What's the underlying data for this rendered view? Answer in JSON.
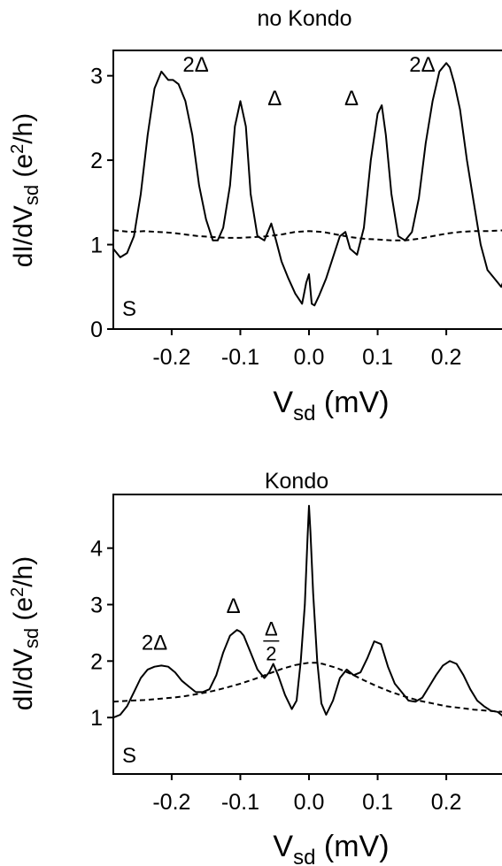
{
  "chart_data": [
    {
      "type": "line",
      "title": "no Kondo",
      "xlabel": {
        "main": "V",
        "sub": "sd",
        "unit": " (mV)"
      },
      "ylabel": {
        "main": "dI/dV",
        "sub": "sd",
        "unit_pre": " (e",
        "sup": "2",
        "unit_post": "/h)"
      },
      "xlim": [
        -0.285,
        0.285
      ],
      "ylim": [
        0,
        3.3
      ],
      "xticks": [
        -0.2,
        -0.1,
        0.0,
        0.1,
        0.2
      ],
      "xtick_labels": [
        "-0.2",
        "-0.1",
        "0.0",
        "0.1",
        "0.2"
      ],
      "yticks": [
        0,
        1,
        2,
        3
      ],
      "ytick_labels": [
        "0",
        "1",
        "2",
        "3"
      ],
      "corner_label": "S",
      "annotations": [
        {
          "text": "2Δ",
          "x": -0.165,
          "y": 3.05
        },
        {
          "text": "Δ",
          "x": -0.05,
          "y": 2.65
        },
        {
          "text": "Δ",
          "x": 0.062,
          "y": 2.65
        },
        {
          "text": "2Δ",
          "x": 0.165,
          "y": 3.05
        }
      ],
      "series": [
        {
          "style": "solid",
          "x": [
            -0.285,
            -0.275,
            -0.265,
            -0.255,
            -0.245,
            -0.235,
            -0.225,
            -0.215,
            -0.205,
            -0.198,
            -0.19,
            -0.18,
            -0.17,
            -0.16,
            -0.15,
            -0.14,
            -0.133,
            -0.125,
            -0.115,
            -0.108,
            -0.1,
            -0.092,
            -0.085,
            -0.075,
            -0.065,
            -0.055,
            -0.048,
            -0.04,
            -0.03,
            -0.02,
            -0.01,
            -0.004,
            0.0,
            0.004,
            0.008,
            0.015,
            0.025,
            0.035,
            0.045,
            0.053,
            0.06,
            0.07,
            0.08,
            0.09,
            0.1,
            0.106,
            0.112,
            0.12,
            0.13,
            0.14,
            0.15,
            0.16,
            0.17,
            0.18,
            0.19,
            0.2,
            0.205,
            0.212,
            0.22,
            0.23,
            0.24,
            0.25,
            0.26,
            0.27,
            0.28,
            0.285
          ],
          "y": [
            0.95,
            0.85,
            0.9,
            1.1,
            1.6,
            2.3,
            2.85,
            3.05,
            2.95,
            2.95,
            2.9,
            2.7,
            2.3,
            1.7,
            1.3,
            1.05,
            1.05,
            1.2,
            1.7,
            2.4,
            2.7,
            2.4,
            1.6,
            1.1,
            1.05,
            1.25,
            1.05,
            0.8,
            0.6,
            0.42,
            0.3,
            0.55,
            0.65,
            0.3,
            0.28,
            0.4,
            0.6,
            0.85,
            1.1,
            1.15,
            0.95,
            0.88,
            1.2,
            2.0,
            2.55,
            2.65,
            2.3,
            1.6,
            1.1,
            1.05,
            1.15,
            1.55,
            2.2,
            2.7,
            3.05,
            3.15,
            3.1,
            2.9,
            2.6,
            2.0,
            1.5,
            1.0,
            0.7,
            0.6,
            0.5,
            0.6
          ]
        },
        {
          "style": "dashed",
          "x": [
            -0.285,
            -0.26,
            -0.24,
            -0.22,
            -0.2,
            -0.18,
            -0.16,
            -0.14,
            -0.12,
            -0.1,
            -0.08,
            -0.06,
            -0.04,
            -0.02,
            0.0,
            0.02,
            0.04,
            0.06,
            0.08,
            0.1,
            0.12,
            0.14,
            0.16,
            0.18,
            0.2,
            0.22,
            0.24,
            0.26,
            0.285
          ],
          "y": [
            1.17,
            1.15,
            1.16,
            1.15,
            1.14,
            1.12,
            1.1,
            1.09,
            1.08,
            1.08,
            1.09,
            1.1,
            1.12,
            1.15,
            1.16,
            1.15,
            1.12,
            1.09,
            1.07,
            1.06,
            1.05,
            1.05,
            1.07,
            1.1,
            1.13,
            1.15,
            1.16,
            1.16,
            1.17
          ]
        }
      ]
    },
    {
      "type": "line",
      "title": "Kondo",
      "xlabel": {
        "main": "V",
        "sub": "sd",
        "unit": " (mV)"
      },
      "ylabel": {
        "main": "dI/dV",
        "sub": "sd",
        "unit_pre": " (e",
        "sup": "2",
        "unit_post": "/h)"
      },
      "xlim": [
        -0.285,
        0.285
      ],
      "ylim": [
        0,
        4.95
      ],
      "xticks": [
        -0.2,
        -0.1,
        0.0,
        0.1,
        0.2
      ],
      "xtick_labels": [
        "-0.2",
        "-0.1",
        "0.0",
        "0.1",
        "0.2"
      ],
      "yticks": [
        1,
        2,
        3,
        4
      ],
      "ytick_labels": [
        "1",
        "2",
        "3",
        "4"
      ],
      "corner_label": "S",
      "annotations": [
        {
          "text": "2Δ",
          "x": -0.225,
          "y": 2.2
        },
        {
          "text": "Δ",
          "x": -0.11,
          "y": 2.85
        },
        {
          "text": "Δ",
          "x": -0.055,
          "y": 2.45,
          "fraction_denominator": "2"
        }
      ],
      "series": [
        {
          "style": "solid",
          "x": [
            -0.285,
            -0.275,
            -0.265,
            -0.255,
            -0.245,
            -0.235,
            -0.225,
            -0.215,
            -0.205,
            -0.195,
            -0.185,
            -0.175,
            -0.165,
            -0.155,
            -0.145,
            -0.135,
            -0.125,
            -0.115,
            -0.105,
            -0.1,
            -0.095,
            -0.085,
            -0.075,
            -0.065,
            -0.058,
            -0.052,
            -0.045,
            -0.035,
            -0.025,
            -0.018,
            -0.012,
            -0.006,
            -0.002,
            0.0,
            0.002,
            0.006,
            0.012,
            0.018,
            0.025,
            0.035,
            0.045,
            0.055,
            0.065,
            0.075,
            0.085,
            0.095,
            0.105,
            0.115,
            0.125,
            0.135,
            0.145,
            0.155,
            0.165,
            0.175,
            0.185,
            0.195,
            0.205,
            0.215,
            0.225,
            0.235,
            0.245,
            0.255,
            0.265,
            0.275,
            0.285
          ],
          "y": [
            1.0,
            1.05,
            1.2,
            1.45,
            1.7,
            1.85,
            1.9,
            1.92,
            1.9,
            1.8,
            1.65,
            1.55,
            1.45,
            1.45,
            1.5,
            1.75,
            2.15,
            2.45,
            2.55,
            2.52,
            2.45,
            2.15,
            1.85,
            1.7,
            1.8,
            1.95,
            1.75,
            1.4,
            1.15,
            1.3,
            2.0,
            3.0,
            4.2,
            4.75,
            4.3,
            3.2,
            2.0,
            1.25,
            1.05,
            1.3,
            1.7,
            1.85,
            1.75,
            1.8,
            2.05,
            2.35,
            2.3,
            1.9,
            1.6,
            1.45,
            1.3,
            1.28,
            1.35,
            1.55,
            1.75,
            1.92,
            2.0,
            1.95,
            1.75,
            1.5,
            1.3,
            1.2,
            1.12,
            1.1,
            1.0
          ]
        },
        {
          "style": "dashed",
          "x": [
            -0.285,
            -0.26,
            -0.24,
            -0.22,
            -0.2,
            -0.18,
            -0.16,
            -0.14,
            -0.12,
            -0.1,
            -0.08,
            -0.06,
            -0.04,
            -0.02,
            0.0,
            0.01,
            0.02,
            0.04,
            0.06,
            0.08,
            0.1,
            0.12,
            0.14,
            0.16,
            0.18,
            0.2,
            0.22,
            0.24,
            0.26,
            0.285
          ],
          "y": [
            1.28,
            1.3,
            1.31,
            1.33,
            1.35,
            1.38,
            1.42,
            1.47,
            1.53,
            1.6,
            1.68,
            1.77,
            1.86,
            1.93,
            1.97,
            1.97,
            1.95,
            1.88,
            1.78,
            1.66,
            1.55,
            1.45,
            1.37,
            1.3,
            1.25,
            1.2,
            1.17,
            1.14,
            1.12,
            1.1
          ]
        }
      ]
    }
  ]
}
